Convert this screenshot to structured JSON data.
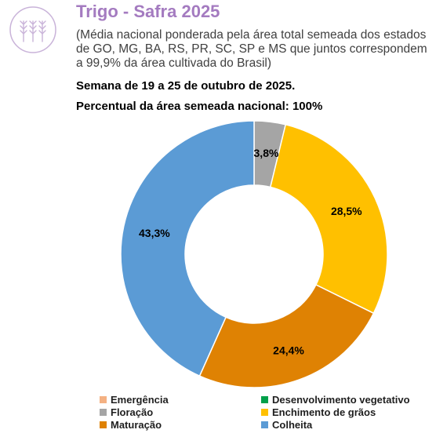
{
  "header": {
    "title": "Trigo - Safra 2025",
    "subtitle": "(Média nacional ponderada pela área total semeada dos estados de GO, MG, BA, RS, PR, SC, SP e MS que juntos correspondem a 99,9% da área cultivada do Brasil)",
    "week": "Semana de 19 a 25 de outubro de 2025.",
    "planted_pct": "Percentual da área semeada nacional: 100%",
    "icon": "wheat-icon"
  },
  "chart_data": {
    "type": "donut",
    "title": "Trigo - Safra 2025",
    "series": [
      {
        "name": "Emergência",
        "value": 0.0,
        "color": "#f4b183",
        "label": ""
      },
      {
        "name": "Desenvolvimento vegetativo",
        "value": 0.0,
        "color": "#00a04a",
        "label": ""
      },
      {
        "name": "Floração",
        "value": 3.8,
        "color": "#a5a5a5",
        "label": "3,8%"
      },
      {
        "name": "Enchimento de grãos",
        "value": 28.5,
        "color": "#ffc000",
        "label": "28,5%"
      },
      {
        "name": "Maturação",
        "value": 24.4,
        "color": "#df8203",
        "label": "24,4%"
      },
      {
        "name": "Colheita",
        "value": 43.3,
        "color": "#5b9bd5",
        "label": "43,3%"
      }
    ],
    "legend_order": [
      "Emergência",
      "Desenvolvimento vegetativo",
      "Floração",
      "Enchimento de grãos",
      "Maturação",
      "Colheita"
    ],
    "legend_position": "bottom"
  }
}
